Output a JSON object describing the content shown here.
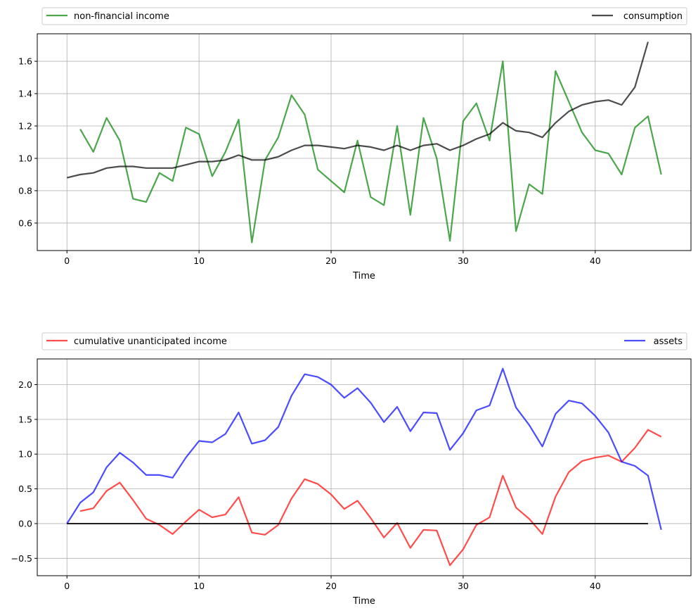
{
  "chart_data": [
    {
      "type": "line",
      "title": "",
      "xlabel": "Time",
      "ylabel": "",
      "xlim": [
        -2.25,
        47.25
      ],
      "ylim": [
        0.43,
        1.77
      ],
      "xticks": [
        0,
        10,
        20,
        30,
        40
      ],
      "yticks": [
        0.6,
        0.8,
        1.0,
        1.2,
        1.4,
        1.6
      ],
      "ytick_labels": [
        "0.6",
        "0.8",
        "1.0",
        "1.2",
        "1.4",
        "1.6"
      ],
      "grid": true,
      "legend_placement": "above plot, expanded",
      "series": [
        {
          "name": "non-financial income",
          "color": "#008000",
          "x": [
            1,
            2,
            3,
            4,
            5,
            6,
            7,
            8,
            9,
            10,
            11,
            12,
            13,
            14,
            15,
            16,
            17,
            18,
            19,
            20,
            21,
            22,
            23,
            24,
            25,
            26,
            27,
            28,
            29,
            30,
            31,
            32,
            33,
            34,
            35,
            36,
            37,
            38,
            39,
            40,
            41,
            42,
            43,
            44,
            45
          ],
          "values": [
            1.18,
            1.04,
            1.25,
            1.11,
            0.75,
            0.73,
            0.91,
            0.86,
            1.19,
            1.15,
            0.89,
            1.04,
            1.24,
            0.48,
            0.99,
            1.13,
            1.39,
            1.27,
            0.93,
            0.86,
            0.79,
            1.11,
            0.76,
            0.71,
            1.2,
            0.65,
            1.25,
            1.0,
            0.49,
            1.23,
            1.34,
            1.11,
            1.6,
            0.55,
            0.84,
            0.78,
            1.54,
            1.35,
            1.16,
            1.05,
            1.03,
            0.9,
            1.19,
            1.26,
            0.9
          ]
        },
        {
          "name": "consumption",
          "color": "#000000",
          "x": [
            0,
            1,
            2,
            3,
            4,
            5,
            6,
            7,
            8,
            9,
            10,
            11,
            12,
            13,
            14,
            15,
            16,
            17,
            18,
            19,
            20,
            21,
            22,
            23,
            24,
            25,
            26,
            27,
            28,
            29,
            30,
            31,
            32,
            33,
            34,
            35,
            36,
            37,
            38,
            39,
            40,
            41,
            42,
            43,
            44
          ],
          "values": [
            0.88,
            0.9,
            0.91,
            0.94,
            0.95,
            0.95,
            0.94,
            0.94,
            0.94,
            0.96,
            0.98,
            0.98,
            0.99,
            1.02,
            0.99,
            0.99,
            1.01,
            1.05,
            1.08,
            1.08,
            1.07,
            1.06,
            1.08,
            1.07,
            1.05,
            1.08,
            1.05,
            1.08,
            1.09,
            1.05,
            1.08,
            1.12,
            1.15,
            1.22,
            1.17,
            1.16,
            1.13,
            1.22,
            1.29,
            1.33,
            1.35,
            1.36,
            1.33,
            1.44,
            1.72
          ]
        }
      ]
    },
    {
      "type": "line",
      "title": "",
      "xlabel": "Time",
      "ylabel": "",
      "xlim": [
        -2.25,
        47.25
      ],
      "ylim": [
        -0.75,
        2.37
      ],
      "xticks": [
        0,
        10,
        20,
        30,
        40
      ],
      "yticks": [
        -0.5,
        0.0,
        0.5,
        1.0,
        1.5,
        2.0
      ],
      "ytick_labels": [
        "−0.5",
        "0.0",
        "0.5",
        "1.0",
        "1.5",
        "2.0"
      ],
      "grid": true,
      "legend_placement": "above plot, expanded",
      "series": [
        {
          "name": "cumulative unanticipated income",
          "color": "#ff0000",
          "x": [
            1,
            2,
            3,
            4,
            5,
            6,
            7,
            8,
            9,
            10,
            11,
            12,
            13,
            14,
            15,
            16,
            17,
            18,
            19,
            20,
            21,
            22,
            23,
            24,
            25,
            26,
            27,
            28,
            29,
            30,
            31,
            32,
            33,
            34,
            35,
            36,
            37,
            38,
            39,
            40,
            41,
            42,
            43,
            44,
            45
          ],
          "values": [
            0.18,
            0.22,
            0.47,
            0.59,
            0.34,
            0.07,
            -0.02,
            -0.15,
            0.03,
            0.2,
            0.09,
            0.13,
            0.38,
            -0.13,
            -0.16,
            -0.02,
            0.36,
            0.64,
            0.57,
            0.42,
            0.21,
            0.33,
            0.08,
            -0.2,
            0.01,
            -0.35,
            -0.09,
            -0.1,
            -0.6,
            -0.37,
            -0.02,
            0.09,
            0.69,
            0.23,
            0.07,
            -0.15,
            0.39,
            0.74,
            0.9,
            0.95,
            0.98,
            0.89,
            1.09,
            1.35,
            1.25
          ]
        },
        {
          "name": "assets",
          "color": "#0000ff",
          "x": [
            0,
            1,
            2,
            3,
            4,
            5,
            6,
            7,
            8,
            9,
            10,
            11,
            12,
            13,
            14,
            15,
            16,
            17,
            18,
            19,
            20,
            21,
            22,
            23,
            24,
            25,
            26,
            27,
            28,
            29,
            30,
            31,
            32,
            33,
            34,
            35,
            36,
            37,
            38,
            39,
            40,
            41,
            42,
            43,
            44,
            45
          ],
          "values": [
            0.0,
            0.3,
            0.45,
            0.81,
            1.02,
            0.88,
            0.7,
            0.7,
            0.66,
            0.95,
            1.19,
            1.17,
            1.29,
            1.6,
            1.15,
            1.2,
            1.39,
            1.84,
            2.15,
            2.11,
            2.0,
            1.81,
            1.95,
            1.74,
            1.46,
            1.68,
            1.33,
            1.6,
            1.59,
            1.06,
            1.3,
            1.63,
            1.7,
            2.23,
            1.67,
            1.42,
            1.11,
            1.58,
            1.77,
            1.73,
            1.55,
            1.31,
            0.89,
            0.83,
            0.69,
            -0.09
          ]
        },
        {
          "name": "",
          "color": "#000000",
          "x": [
            0,
            44
          ],
          "values": [
            0.0,
            0.0
          ]
        }
      ]
    }
  ]
}
